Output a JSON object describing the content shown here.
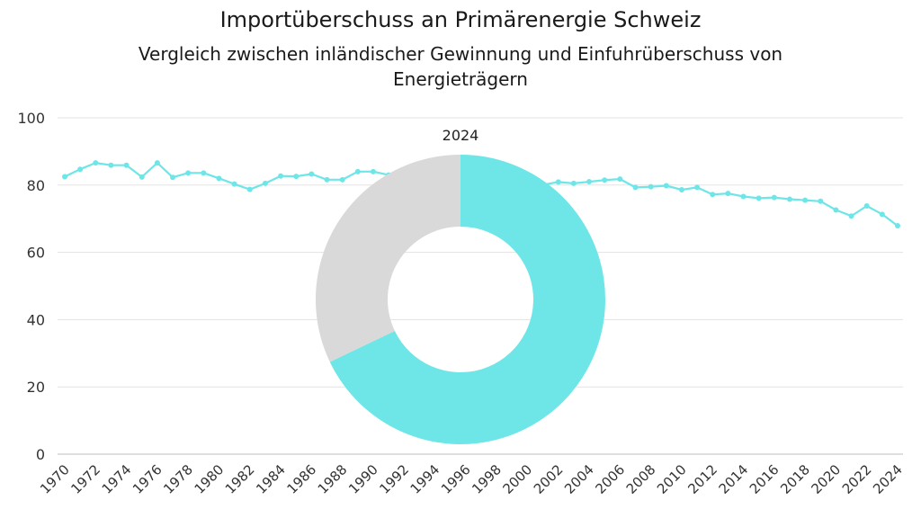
{
  "chart_data": [
    {
      "type": "line",
      "title": "Importüberschuss an Primärenergie Schweiz",
      "subtitle": "Vergleich zwischen inländischer Gewinnung und Einfuhrüberschuss von Energieträgern",
      "xlabel": "",
      "ylabel": "",
      "ylim": [
        0,
        100
      ],
      "yticks": [
        0,
        20,
        40,
        60,
        80,
        100
      ],
      "grid": true,
      "color": "#6ee6e8",
      "x": [
        1970,
        1971,
        1972,
        1973,
        1974,
        1975,
        1976,
        1977,
        1978,
        1979,
        1980,
        1981,
        1982,
        1983,
        1984,
        1985,
        1986,
        1987,
        1988,
        1989,
        1990,
        1991,
        1992,
        1993,
        1994,
        1995,
        1996,
        1997,
        1998,
        1999,
        2000,
        2001,
        2002,
        2003,
        2004,
        2005,
        2006,
        2007,
        2008,
        2009,
        2010,
        2011,
        2012,
        2013,
        2014,
        2015,
        2016,
        2017,
        2018,
        2019,
        2020,
        2021,
        2022,
        2023,
        2024
      ],
      "values": [
        82.5,
        84.7,
        86.6,
        85.9,
        85.9,
        82.4,
        86.6,
        82.3,
        83.6,
        83.6,
        82.0,
        80.3,
        78.7,
        80.5,
        82.7,
        82.6,
        83.3,
        81.6,
        81.6,
        84.0,
        84.0,
        83.0,
        82.5,
        82.0,
        81.5,
        81.0,
        80.5,
        80.0,
        79.8,
        79.7,
        79.6,
        80.1,
        80.9,
        80.5,
        81.0,
        81.5,
        81.8,
        79.3,
        79.5,
        79.8,
        78.6,
        79.3,
        77.2,
        77.5,
        76.6,
        76.1,
        76.3,
        75.8,
        75.5,
        75.2,
        72.6,
        70.8,
        73.8,
        71.3,
        67.9
      ],
      "xtick_labels": [
        "1970",
        "1972",
        "1974",
        "1976",
        "1978",
        "1980",
        "1982",
        "1984",
        "1986",
        "1988",
        "1990",
        "1992",
        "1994",
        "1996",
        "1998",
        "2000",
        "2002",
        "2004",
        "2006",
        "2008",
        "2010",
        "2012",
        "2014",
        "2016",
        "2018",
        "2020",
        "2022",
        "2024"
      ]
    },
    {
      "type": "pie",
      "subtype": "donut",
      "title": "2024",
      "values": [
        67.9,
        32.1
      ],
      "colors": [
        "#6ee6e8",
        "#d9d9d9"
      ]
    }
  ]
}
